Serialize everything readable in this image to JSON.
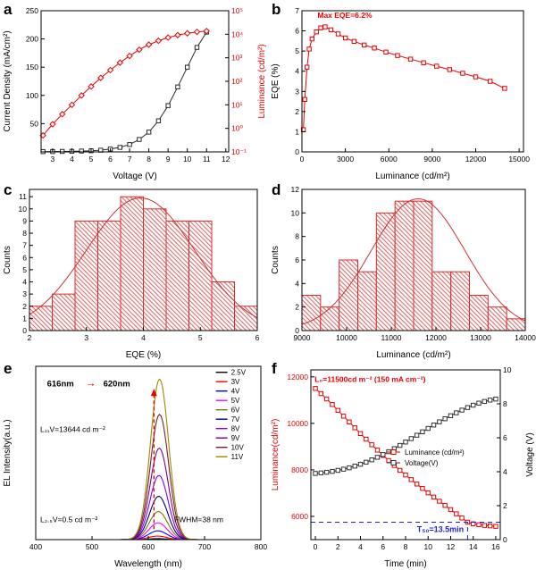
{
  "figure": {
    "background": "#ffffff"
  },
  "panels": {
    "a": {
      "label": "a"
    },
    "b": {
      "label": "b"
    },
    "c": {
      "label": "c"
    },
    "d": {
      "label": "d"
    },
    "e": {
      "label": "e"
    },
    "f": {
      "label": "f"
    }
  },
  "chart_data": [
    {
      "id": "a",
      "type": "line",
      "x": {
        "label": "Voltage (V)",
        "min": 2.4,
        "max": 12.15,
        "ticks": [
          3,
          4,
          5,
          6,
          7,
          8,
          9,
          10,
          11,
          12
        ]
      },
      "y": {
        "label": "Current Density (mA/cm²)",
        "min": 0,
        "max": 250,
        "ticks": [
          50,
          100,
          150,
          200,
          250
        ],
        "color": "#000000"
      },
      "y2": {
        "label": "Luminance (cd/m²)",
        "scale": "log",
        "min": 0.1,
        "max": 100000,
        "ticks": [
          0.1,
          1,
          10,
          100,
          1000,
          10000,
          100000
        ],
        "tickLabels": [
          "10⁻¹",
          "10⁰",
          "10¹",
          "10²",
          "10³",
          "10⁴",
          "10⁵"
        ],
        "color": "#e60000"
      },
      "series": [
        {
          "name": "current-density",
          "axis": "y",
          "marker": "square",
          "color": "#2a2a2a",
          "x": [
            2.5,
            3,
            3.5,
            4,
            4.5,
            5,
            5.5,
            6,
            6.5,
            7,
            7.5,
            8,
            8.5,
            9,
            9.5,
            10,
            10.5,
            11
          ],
          "y": [
            0.5,
            0.6,
            0.8,
            1,
            1.5,
            2,
            3,
            5,
            8,
            13,
            22,
            35,
            55,
            82,
            115,
            150,
            185,
            212
          ]
        },
        {
          "name": "luminance",
          "axis": "y2",
          "marker": "diamond",
          "color": "#e60000",
          "x": [
            2.5,
            3,
            3.5,
            4,
            4.5,
            5,
            5.5,
            6,
            6.5,
            7,
            7.5,
            8,
            8.5,
            9,
            9.5,
            10,
            10.5,
            11
          ],
          "y": [
            0.5,
            1.5,
            4,
            10,
            25,
            60,
            140,
            300,
            620,
            1200,
            2200,
            3600,
            5300,
            7200,
            9200,
            11000,
            12600,
            13644
          ]
        }
      ]
    },
    {
      "id": "b",
      "type": "line",
      "x": {
        "label": "Luminance (cd/m²)",
        "min": 0,
        "max": 15300,
        "ticks": [
          0,
          3000,
          6000,
          9000,
          12000,
          15000
        ]
      },
      "y": {
        "label": "EQE (%)",
        "min": 0,
        "max": 7,
        "ticks": [
          0,
          1,
          2,
          3,
          4,
          5,
          6,
          7
        ],
        "color": "#000000"
      },
      "series": [
        {
          "name": "eqe",
          "axis": "y",
          "marker": "square",
          "color": "#e60000",
          "x": [
            100,
            200,
            350,
            500,
            700,
            1000,
            1300,
            1600,
            2000,
            2500,
            3000,
            3600,
            4300,
            5000,
            5800,
            6600,
            7500,
            8400,
            9300,
            10200,
            11100,
            12000,
            13000,
            14000
          ],
          "y": [
            1.1,
            2.6,
            4.2,
            5.1,
            5.6,
            5.95,
            6.15,
            6.2,
            6.05,
            5.85,
            5.65,
            5.48,
            5.3,
            5.15,
            4.95,
            4.78,
            4.6,
            4.42,
            4.25,
            4.08,
            3.9,
            3.72,
            3.5,
            3.15
          ]
        }
      ],
      "annotations": [
        {
          "t": "text",
          "fx": 0.07,
          "fy": 0.95,
          "s": "Max EQE=6.2%",
          "c": "#e60000",
          "fs": 8.5,
          "b": true
        }
      ]
    },
    {
      "id": "c",
      "type": "histogram",
      "x": {
        "label": "EQE (%)",
        "min": 2,
        "max": 6,
        "ticks": [
          2,
          3,
          4,
          5,
          6
        ]
      },
      "y": {
        "label": "Counts",
        "min": 0,
        "max": 11.6,
        "ticks": [
          0,
          1,
          2,
          3,
          4,
          5,
          6,
          7,
          8,
          9,
          10,
          11
        ],
        "color": "#000000"
      },
      "binStart": 2,
      "binWidth": 0.4,
      "counts": [
        2,
        3,
        9,
        9,
        11,
        10,
        9,
        9,
        4,
        2
      ],
      "fit": {
        "center": 3.95,
        "sigma": 0.95,
        "amp": 10.9
      },
      "barColor": "#d32f2f"
    },
    {
      "id": "d",
      "type": "histogram",
      "x": {
        "label": "Luminance (cd/m²)",
        "min": 9000,
        "max": 14000,
        "ticks": [
          9000,
          10000,
          11000,
          12000,
          13000,
          14000
        ]
      },
      "y": {
        "label": "Counts",
        "min": 0,
        "max": 12,
        "ticks": [
          0,
          2,
          4,
          6,
          8,
          10,
          12
        ],
        "color": "#000000"
      },
      "binStart": 9000,
      "binWidth": 416.6667,
      "counts": [
        3,
        2,
        6,
        5,
        10,
        11,
        11,
        5,
        5,
        3,
        2,
        1
      ],
      "fit": {
        "center": 11600,
        "sigma": 1050,
        "amp": 11.2
      },
      "barColor": "#d32f2f"
    },
    {
      "id": "e",
      "type": "line",
      "x": {
        "label": "Wavelength (nm)",
        "min": 400,
        "max": 800,
        "ticks": [
          400,
          500,
          600,
          700,
          800
        ]
      },
      "y": {
        "label": "EL Intensity(a.u.)",
        "min": 0,
        "max": 1.08,
        "ticks": [],
        "color": "#000000"
      },
      "fwhm": 38,
      "curves": [
        {
          "label": "2.5V",
          "color": "#000000",
          "center": 616,
          "h": 0.006
        },
        {
          "label": "3V",
          "color": "#ff0000",
          "center": 616.5,
          "h": 0.022
        },
        {
          "label": "4V",
          "color": "#0000ff",
          "center": 617,
          "h": 0.055
        },
        {
          "label": "5V",
          "color": "#ff00ff",
          "center": 617.5,
          "h": 0.105
        },
        {
          "label": "6V",
          "color": "#7b7b00",
          "center": 618,
          "h": 0.175
        },
        {
          "label": "7V",
          "color": "#000080",
          "center": 618.5,
          "h": 0.27
        },
        {
          "label": "8V",
          "color": "#7f00ff",
          "center": 619,
          "h": 0.4
        },
        {
          "label": "9V",
          "color": "#800080",
          "center": 619.5,
          "h": 0.57
        },
        {
          "label": "10V",
          "color": "#7a1f2b",
          "center": 620,
          "h": 0.78
        },
        {
          "label": "11V",
          "color": "#9b8b00",
          "center": 620,
          "h": 1.0
        }
      ],
      "legend": {
        "fx": 0.8,
        "fy": 0.95,
        "marker": "line",
        "row": 10.5,
        "items": "curves"
      },
      "annotations": [
        {
          "t": "text",
          "fx": 0.05,
          "fy": 0.885,
          "s": "616nm",
          "c": "#000000",
          "fs": 9.5,
          "b": true
        },
        {
          "t": "text",
          "fx": 0.22,
          "fy": 0.885,
          "s": "→",
          "c": "#e60000",
          "fs": 12,
          "b": true
        },
        {
          "t": "text",
          "fx": 0.3,
          "fy": 0.885,
          "s": "620nm",
          "c": "#000000",
          "fs": 9.5,
          "b": true
        },
        {
          "t": "text",
          "fx": 0.02,
          "fy": 0.62,
          "s": "L₁₁V=13644 cd m⁻²",
          "c": "#000000",
          "fs": 8.5
        },
        {
          "t": "varrow",
          "fx": 0.525,
          "fy1": 0.06,
          "fy2": 0.87,
          "c": "#e60000"
        },
        {
          "t": "text",
          "fx": 0.02,
          "fy": 0.1,
          "s": "L₂.₅V=0.5 cd m⁻²",
          "c": "#000000",
          "fs": 8.5
        },
        {
          "t": "text",
          "fx": 0.615,
          "fy": 0.1,
          "s": "FWHM=38 nm",
          "c": "#000000",
          "fs": 8.5
        }
      ]
    },
    {
      "id": "f",
      "type": "line",
      "x": {
        "label": "Time (min)",
        "min": -0.4,
        "max": 16.4,
        "ticks": [
          0,
          2,
          4,
          6,
          8,
          10,
          12,
          14,
          16
        ]
      },
      "y": {
        "label": "Luminance(cd/m²)",
        "min": 5000,
        "max": 12300,
        "ticks": [
          6000,
          8000,
          10000,
          12000
        ],
        "color": "#e60000"
      },
      "y2": {
        "label": "Voltage (V)",
        "min": 0,
        "max": 10,
        "ticks": [
          0,
          2,
          4,
          6,
          8,
          10
        ],
        "color": "#000000"
      },
      "series": [
        {
          "name": "luminance-decay",
          "axis": "y",
          "marker": "square",
          "color": "#e60000",
          "x": [
            0,
            0.5,
            1,
            1.5,
            2,
            2.5,
            3,
            3.5,
            4,
            4.5,
            5,
            5.5,
            6,
            6.5,
            7,
            7.5,
            8,
            8.5,
            9,
            9.5,
            10,
            10.5,
            11,
            11.5,
            12,
            12.5,
            13,
            13.5,
            14,
            14.5,
            15,
            15.5,
            16
          ],
          "y": [
            11500,
            11280,
            11050,
            10810,
            10560,
            10310,
            10060,
            9810,
            9560,
            9320,
            9080,
            8850,
            8620,
            8400,
            8190,
            7980,
            7780,
            7580,
            7390,
            7200,
            7010,
            6830,
            6650,
            6470,
            6290,
            6110,
            5930,
            5750,
            5680,
            5640,
            5610,
            5590,
            5570
          ]
        },
        {
          "name": "driving-voltage",
          "axis": "y2",
          "marker": "square",
          "color": "#333333",
          "x": [
            0,
            0.5,
            1,
            1.5,
            2,
            2.5,
            3,
            3.5,
            4,
            4.5,
            5,
            5.5,
            6,
            6.5,
            7,
            7.5,
            8,
            8.5,
            9,
            9.5,
            10,
            10.5,
            11,
            11.5,
            12,
            12.5,
            13,
            13.5,
            14,
            14.5,
            15,
            15.5,
            16
          ],
          "y": [
            3.9,
            3.93,
            3.97,
            4.02,
            4.08,
            4.15,
            4.23,
            4.33,
            4.44,
            4.56,
            4.7,
            4.85,
            5.01,
            5.18,
            5.36,
            5.55,
            5.75,
            5.95,
            6.15,
            6.35,
            6.55,
            6.75,
            6.94,
            7.12,
            7.3,
            7.47,
            7.63,
            7.78,
            7.92,
            8.04,
            8.14,
            8.22,
            8.28
          ]
        }
      ],
      "legend": {
        "fx": 0.42,
        "fy": 0.5,
        "marker": "square",
        "row": 12,
        "items": [
          {
            "label": "Luminance (cd/m²)",
            "color": "#e60000"
          },
          {
            "label": "Voltage(V)",
            "color": "#333333"
          }
        ]
      },
      "annotations": [
        {
          "t": "text",
          "fx": 0.02,
          "fy": 0.93,
          "s": "L₀=11500cd m⁻² (150 mA cm⁻²)",
          "c": "#e60000",
          "fs": 8.5,
          "b": true
        },
        {
          "t": "hline",
          "v": 5750,
          "c": "#2222cc"
        },
        {
          "t": "vline",
          "x": 13.5,
          "vTop": 5750,
          "c": "#2222cc"
        },
        {
          "t": "text",
          "fx": 0.56,
          "fy": 0.045,
          "s": "T₅₀=13.5min",
          "c": "#2222cc",
          "fs": 9,
          "b": true
        }
      ]
    }
  ]
}
